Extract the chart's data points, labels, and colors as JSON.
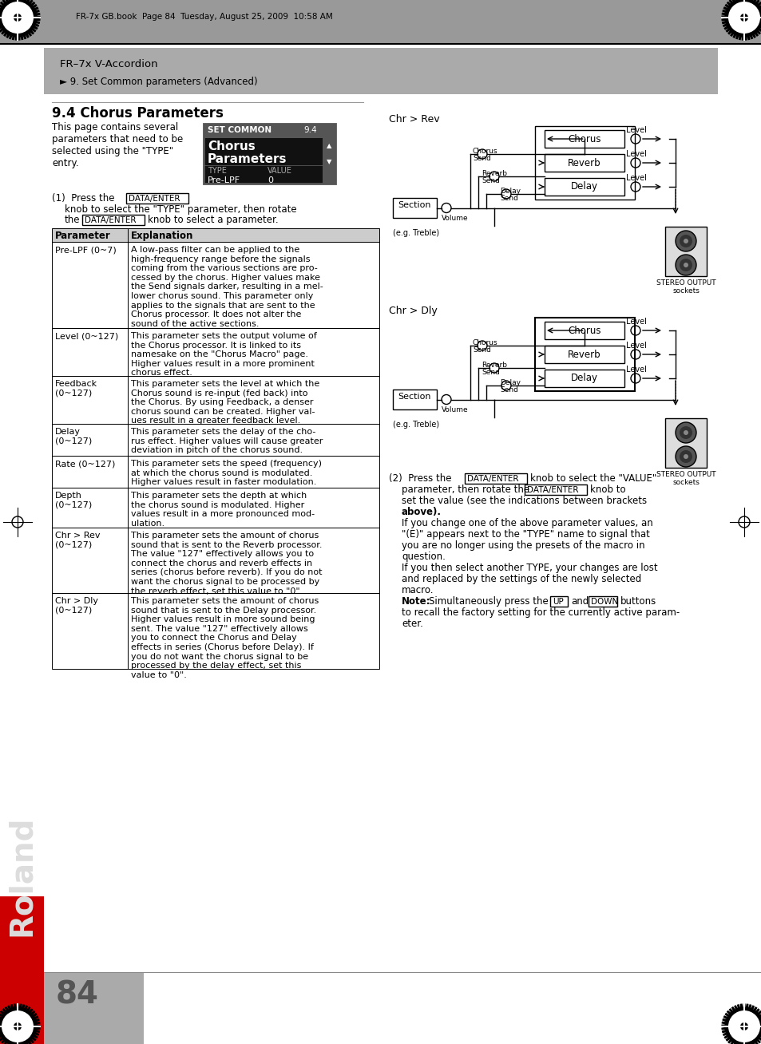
{
  "header_text": "FR-7x GB.book  Page 84  Tuesday, August 25, 2009  10:58 AM",
  "breadcrumb_line1": "FR–7x V-Accordion",
  "breadcrumb_line2": "► 9. Set Common parameters (Advanced)",
  "section_title": "9.4 Chorus Parameters",
  "section_intro": "This page contains several\nparameters that need to be\nselected using the \"TYPE\"\nentry.",
  "table_rows": [
    [
      "Pre-LPF (0~7)",
      "A low-pass filter can be applied to the\nhigh-frequency range before the signals\ncoming from the various sections are pro-\ncessed by the chorus. Higher values make\nthe Send signals darker, resulting in a mel-\nlower chorus sound. This parameter only\napplies to the signals that are sent to the\nChorus processor. It does not alter the\nsound of the active sections."
    ],
    [
      "Level (0~127)",
      "This parameter sets the output volume of\nthe Chorus processor. It is linked to its\nnamesake on the \"Chorus Macro\" page.\nHigher values result in a more prominent\nchorus effect."
    ],
    [
      "Feedback\n(0~127)",
      "This parameter sets the level at which the\nChorus sound is re-input (fed back) into\nthe Chorus. By using Feedback, a denser\nchorus sound can be created. Higher val-\nues result in a greater feedback level."
    ],
    [
      "Delay\n(0~127)",
      "This parameter sets the delay of the cho-\nrus effect. Higher values will cause greater\ndeviation in pitch of the chorus sound."
    ],
    [
      "Rate (0~127)",
      "This parameter sets the speed (frequency)\nat which the chorus sound is modulated.\nHigher values result in faster modulation."
    ],
    [
      "Depth\n(0~127)",
      "This parameter sets the depth at which\nthe chorus sound is modulated. Higher\nvalues result in a more pronounced mod-\nulation."
    ],
    [
      "Chr > Rev\n(0~127)",
      "This parameter sets the amount of chorus\nsound that is sent to the Reverb processor.\nThe value \"127\" effectively allows you to\nconnect the chorus and reverb effects in\nseries (chorus before reverb). If you do not\nwant the chorus signal to be processed by\nthe reverb effect, set this value to \"0\"."
    ],
    [
      "Chr > Dly\n(0~127)",
      "This parameter sets the amount of chorus\nsound that is sent to the Delay processor.\nHigher values result in more sound being\nsent. The value \"127\" effectively allows\nyou to connect the Chorus and Delay\neffects in series (Chorus before Delay). If\nyou do not want the chorus signal to be\nprocessed by the delay effect, set this\nvalue to \"0\"."
    ]
  ],
  "diagram_title1": "Chr > Rev",
  "diagram_title2": "Chr > Dly",
  "page_number": "84",
  "bg_color": "#ffffff"
}
